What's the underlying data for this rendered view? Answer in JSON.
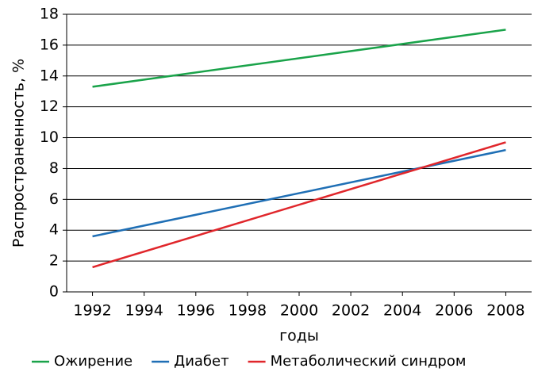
{
  "chart_data": {
    "type": "line",
    "xlabel": "годы",
    "ylabel": "Распространенность, %",
    "x": [
      1992,
      2008
    ],
    "series": [
      {
        "name": "Ожирение",
        "color": "#1aa34a",
        "values": [
          13.3,
          17.0
        ]
      },
      {
        "name": "Диабет",
        "color": "#1f6fb5",
        "values": [
          3.6,
          9.2
        ]
      },
      {
        "name": "Метаболический синдром",
        "color": "#e0262b",
        "values": [
          1.6,
          9.7
        ]
      }
    ],
    "xlim": [
      1991,
      2009
    ],
    "xticks": [
      1992,
      1994,
      1996,
      1998,
      2000,
      2002,
      2004,
      2006,
      2008
    ],
    "ylim": [
      0,
      18
    ],
    "yticks": [
      0,
      2,
      4,
      6,
      8,
      10,
      12,
      14,
      16,
      18
    ],
    "grid": true,
    "legend": "bottom"
  }
}
